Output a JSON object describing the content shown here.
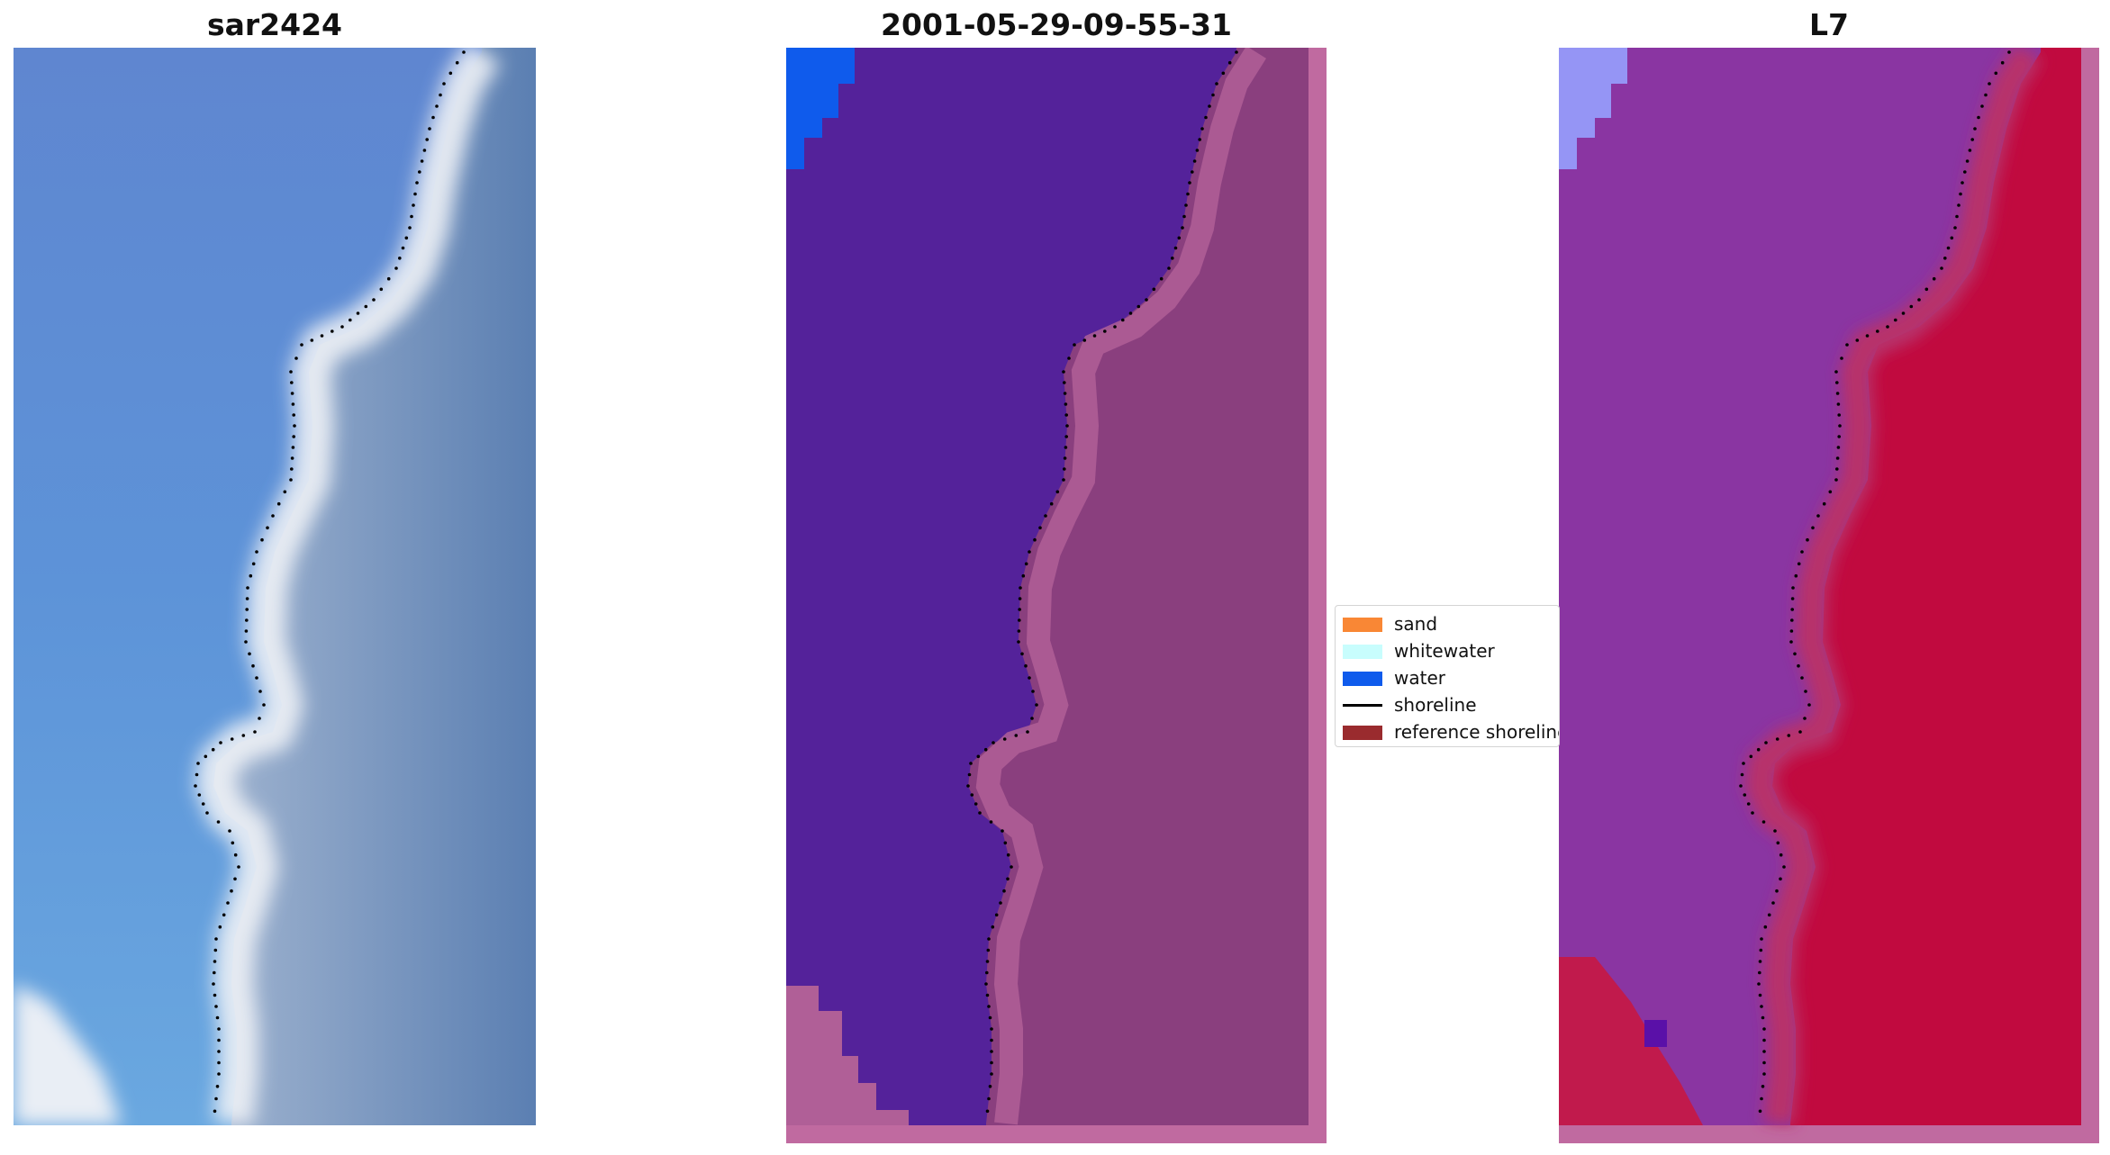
{
  "panels": [
    {
      "title": "sar2424",
      "kind": "rgb"
    },
    {
      "title": "2001-05-29-09-55-31",
      "kind": "classified"
    },
    {
      "title": "L7",
      "kind": "index"
    }
  ],
  "legend": {
    "items": [
      {
        "label": "sand",
        "color": "#f98735",
        "shape": "patch"
      },
      {
        "label": "whitewater",
        "color": "#c8fdfd",
        "shape": "patch"
      },
      {
        "label": "water",
        "color": "#0f5bec",
        "shape": "patch"
      },
      {
        "label": "shoreline",
        "color": "#000000",
        "shape": "line"
      },
      {
        "label": "reference shoreline",
        "color": "#9a2b2e",
        "shape": "patch"
      }
    ]
  },
  "colors": {
    "sea_rgb": "#5c8ed6",
    "surf": "#e8ecf2",
    "land_rgb": "#6f8db8",
    "classified_water": "#54229a",
    "classified_land": "#8a3f7e",
    "classified_border": "#c06aa0",
    "index_water": "#8a35a2",
    "index_land": "#c10a3f",
    "shoreline_dots": "#000000"
  }
}
